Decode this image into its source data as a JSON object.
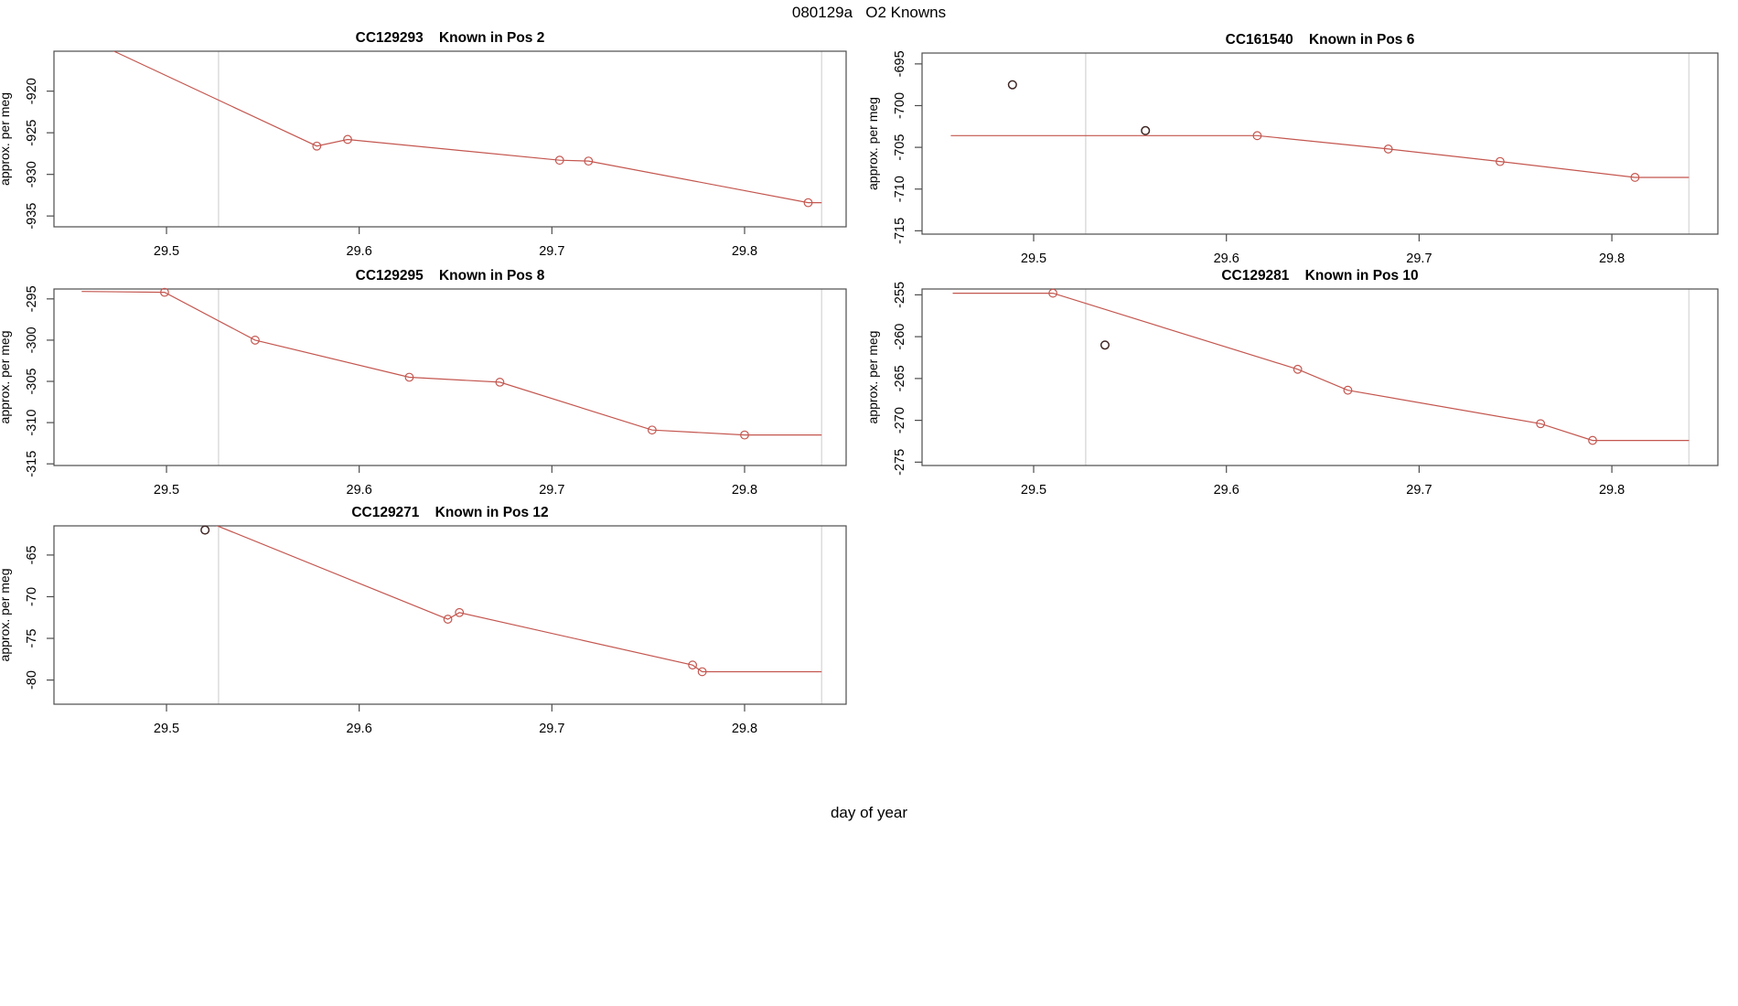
{
  "page": {
    "title": "080129a   O2 Knowns",
    "xlabel": "day of year"
  },
  "colors": {
    "line": "#c4564f",
    "marker": "#c4564f",
    "outlier": "#3f2724",
    "vline": "#dcdcdc",
    "axis": "#4d4d4d",
    "text": "#000000",
    "background": "#ffffff"
  },
  "chart_data": [
    {
      "type": "line",
      "id": "CC129293",
      "subtitle": "Known in Pos 2",
      "ylabel": "approx. per meg",
      "xticks": [
        29.5,
        29.6,
        29.7,
        29.8
      ],
      "yticks": [
        -920,
        -925,
        -930,
        -935
      ],
      "xlim": [
        29.4416,
        29.8527
      ],
      "ylim": [
        -936.3,
        -915.2
      ],
      "vlines": [
        29.527,
        29.84
      ],
      "line": [
        [
          29.457,
          -913.5
        ],
        [
          29.578,
          -926.6
        ],
        [
          29.594,
          -925.8
        ],
        [
          29.704,
          -928.3
        ],
        [
          29.719,
          -928.4
        ],
        [
          29.833,
          -933.4
        ],
        [
          29.84,
          -933.4
        ]
      ],
      "markers": [
        [
          29.578,
          -926.6
        ],
        [
          29.594,
          -925.8
        ],
        [
          29.704,
          -928.3
        ],
        [
          29.719,
          -928.4
        ],
        [
          29.833,
          -933.4
        ]
      ],
      "outliers": []
    },
    {
      "type": "line",
      "id": "CC161540",
      "subtitle": "Known in Pos 6",
      "ylabel": "approx. per meg",
      "xticks": [
        29.5,
        29.6,
        29.7,
        29.8
      ],
      "yticks": [
        -695,
        -700,
        -705,
        -710,
        -715
      ],
      "xlim": [
        29.4421,
        29.855
      ],
      "ylim": [
        -715.4,
        -693.7
      ],
      "vlines": [
        29.527,
        29.84
      ],
      "line": [
        [
          29.457,
          -703.6
        ],
        [
          29.616,
          -703.6
        ],
        [
          29.684,
          -705.2
        ],
        [
          29.742,
          -706.7
        ],
        [
          29.812,
          -708.6
        ],
        [
          29.84,
          -708.6
        ]
      ],
      "markers": [
        [
          29.616,
          -703.6
        ],
        [
          29.684,
          -705.2
        ],
        [
          29.742,
          -706.7
        ],
        [
          29.812,
          -708.6
        ]
      ],
      "outliers": [
        [
          29.489,
          -697.5
        ],
        [
          29.558,
          -703.0
        ]
      ]
    },
    {
      "type": "line",
      "id": "CC129295",
      "subtitle": "Known in Pos 8",
      "ylabel": "approx. per meg",
      "xticks": [
        29.5,
        29.6,
        29.7,
        29.8
      ],
      "yticks": [
        -295,
        -300,
        -305,
        -310,
        -315
      ],
      "xlim": [
        29.4416,
        29.8527
      ],
      "ylim": [
        -315.2,
        -293.8
      ],
      "vlines": [
        29.527,
        29.84
      ],
      "line": [
        [
          29.456,
          -294.1
        ],
        [
          29.499,
          -294.2
        ],
        [
          29.546,
          -300.0
        ],
        [
          29.626,
          -304.5
        ],
        [
          29.673,
          -305.1
        ],
        [
          29.752,
          -310.9
        ],
        [
          29.8,
          -311.5
        ],
        [
          29.84,
          -311.5
        ]
      ],
      "markers": [
        [
          29.499,
          -294.2
        ],
        [
          29.546,
          -300.0
        ],
        [
          29.626,
          -304.5
        ],
        [
          29.673,
          -305.1
        ],
        [
          29.752,
          -310.9
        ],
        [
          29.8,
          -311.5
        ]
      ],
      "outliers": []
    },
    {
      "type": "line",
      "id": "CC129281",
      "subtitle": "Known in Pos 10",
      "ylabel": "approx. per meg",
      "xticks": [
        29.5,
        29.6,
        29.7,
        29.8
      ],
      "yticks": [
        -255,
        -260,
        -265,
        -270,
        -275
      ],
      "xlim": [
        29.4421,
        29.855
      ],
      "ylim": [
        -275.4,
        -254.3
      ],
      "vlines": [
        29.527,
        29.84
      ],
      "line": [
        [
          29.458,
          -254.8
        ],
        [
          29.51,
          -254.8
        ],
        [
          29.637,
          -263.9
        ],
        [
          29.663,
          -266.4
        ],
        [
          29.763,
          -270.4
        ],
        [
          29.79,
          -272.4
        ],
        [
          29.84,
          -272.4
        ]
      ],
      "markers": [
        [
          29.51,
          -254.8
        ],
        [
          29.637,
          -263.9
        ],
        [
          29.663,
          -266.4
        ],
        [
          29.763,
          -270.4
        ],
        [
          29.79,
          -272.4
        ]
      ],
      "outliers": [
        [
          29.537,
          -261.0
        ]
      ]
    },
    {
      "type": "line",
      "id": "CC129271",
      "subtitle": "Known in Pos 12",
      "ylabel": "approx. per meg",
      "xticks": [
        29.5,
        29.6,
        29.7,
        29.8
      ],
      "yticks": [
        -65,
        -70,
        -75,
        -80
      ],
      "xlim": [
        29.4416,
        29.8527
      ],
      "ylim": [
        -82.9,
        -61.5
      ],
      "vlines": [
        29.527,
        29.84
      ],
      "line": [
        [
          29.457,
          -55.0
        ],
        [
          29.646,
          -72.7
        ],
        [
          29.652,
          -71.9
        ],
        [
          29.773,
          -78.2
        ],
        [
          29.778,
          -79.0
        ],
        [
          29.84,
          -79.0
        ]
      ],
      "markers": [
        [
          29.646,
          -72.7
        ],
        [
          29.652,
          -71.9
        ],
        [
          29.773,
          -78.2
        ],
        [
          29.778,
          -79.0
        ]
      ],
      "outliers": [
        [
          29.52,
          -62.0
        ]
      ]
    }
  ]
}
